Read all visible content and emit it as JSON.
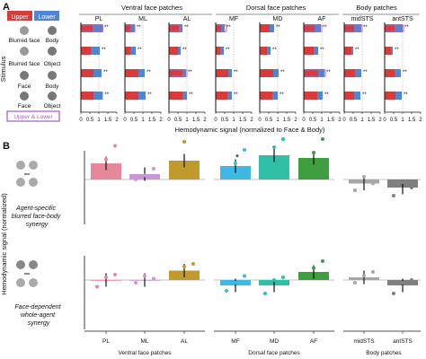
{
  "colors": {
    "upper": "#d93a3a",
    "lower": "#4f86d3",
    "upper_lower": "#b260c9",
    "pink": "#e6879a",
    "lilac": "#c996da",
    "gold": "#c09a2a",
    "cyan": "#3fb8e3",
    "teal": "#2fbfa6",
    "green": "#3f9e3f",
    "gray_light": "#a6a6a6",
    "gray_dark": "#7f7f7f"
  },
  "panel_a": {
    "letter": "A",
    "legend": {
      "upper": "Upper",
      "lower": "Lower",
      "upper_lower": "Upper & Lower"
    },
    "ylabel": "Stimulus",
    "xlabel": "Hemodynamic signal (normalized to Face & Body)",
    "group_titles": [
      "Ventral face patches",
      "Dorsal face patches",
      "Body patches"
    ],
    "region_titles": [
      "PL",
      "ML",
      "AL",
      "MF",
      "MD",
      "AF",
      "midSTS",
      "antSTS"
    ],
    "stimulus_rows": [
      [
        "Blurred face",
        "Body"
      ],
      [
        "Blurred face",
        "Object"
      ],
      [
        "Face",
        "Body"
      ],
      [
        "Face",
        "Object"
      ]
    ],
    "tick_labels": [
      "0",
      "0.5",
      "1",
      "1.5",
      "2"
    ],
    "sig_marker": "**",
    "star_marker": "*"
  },
  "panel_b": {
    "letter": "B",
    "ylabel": "Hemodynamic signal (normalized)",
    "synergy_labels": [
      "Agent-specific blurred face-body synergy",
      "Face-dependent whole-agent synergy"
    ],
    "category_labels": [
      "PL",
      "ML",
      "AL",
      "MF",
      "MD",
      "AF",
      "midSTS",
      "antSTS"
    ],
    "group_labels": [
      "Ventral face patches",
      "Dorsal face patches",
      "Body patches"
    ],
    "star_marker": "*"
  },
  "chart_data": [
    {
      "type": "bar",
      "title": "Ventral face patches / Dorsal face patches / Body patches",
      "xlabel": "Hemodynamic signal (normalized to Face & Body)",
      "ylabel": "Stimulus",
      "xlim": [
        0,
        2
      ],
      "orientation": "horizontal",
      "categories": [
        "Blurred face + Body",
        "Blurred face + Object",
        "Face + Body",
        "Face + Object"
      ],
      "series": [
        {
          "name": "PL",
          "upper": [
            0.65,
            0.55,
            0.7,
            0.72
          ],
          "lower": [
            0.55,
            0.5,
            0.45,
            0.5
          ],
          "upper_lower": [
            1.22,
            0.0,
            0.0,
            0.0
          ]
        },
        {
          "name": "ML",
          "upper": [
            0.3,
            0.3,
            0.75,
            0.75
          ],
          "lower": [
            0.25,
            0.3,
            0.35,
            0.4
          ],
          "upper_lower": [
            0.55,
            0.0,
            0.0,
            0.0
          ]
        },
        {
          "name": "AL",
          "upper": [
            0.55,
            0.5,
            0.75,
            0.75
          ],
          "lower": [
            0.2,
            0.15,
            0.2,
            0.25
          ],
          "upper_lower": [
            0.62,
            0.0,
            1.0,
            0.0
          ]
        },
        {
          "name": "MF",
          "upper": [
            0.3,
            0.25,
            0.7,
            0.65
          ],
          "lower": [
            0.2,
            0.2,
            0.2,
            0.25
          ],
          "upper_lower": [
            0.6,
            0.0,
            0.0,
            0.0
          ]
        },
        {
          "name": "MD",
          "upper": [
            0.55,
            0.4,
            0.75,
            0.7
          ],
          "lower": [
            0.25,
            0.2,
            0.3,
            0.3
          ],
          "upper_lower": [
            0.0,
            0.0,
            0.0,
            0.0
          ]
        },
        {
          "name": "AF",
          "upper": [
            0.6,
            0.55,
            0.8,
            0.75
          ],
          "lower": [
            0.35,
            0.25,
            0.35,
            0.3
          ],
          "upper_lower": [
            1.0,
            0.0,
            1.2,
            0.0
          ]
        },
        {
          "name": "midSTS",
          "upper": [
            0.55,
            0.4,
            0.6,
            0.55
          ],
          "lower": [
            0.4,
            0.1,
            0.35,
            0.35
          ],
          "upper_lower": [
            1.0,
            0.0,
            0.0,
            0.0
          ]
        },
        {
          "name": "antSTS",
          "upper": [
            0.55,
            0.35,
            0.55,
            0.6
          ],
          "lower": [
            0.45,
            0.1,
            0.35,
            0.35
          ],
          "upper_lower": [
            1.05,
            0.0,
            0.0,
            0.0
          ]
        }
      ]
    },
    {
      "type": "bar",
      "title": "Agent-specific blurred face-body synergy",
      "ylabel": "Hemodynamic signal (normalized)",
      "categories": [
        "PL",
        "ML",
        "AL",
        "MF",
        "MD",
        "AF",
        "midSTS",
        "antSTS"
      ],
      "values": [
        0.12,
        0.04,
        0.14,
        0.1,
        0.18,
        0.16,
        -0.03,
        -0.06
      ],
      "points": [
        [
          0.03,
          0.15,
          0.25
        ],
        [
          0.0,
          0.03,
          0.08
        ],
        [
          0.1,
          0.28,
          0.06
        ],
        [
          0.05,
          0.12,
          0.22
        ],
        [
          0.1,
          0.24,
          0.3
        ],
        [
          0.08,
          0.2,
          0.3
        ],
        [
          -0.08,
          0.02,
          -0.03
        ],
        [
          -0.12,
          -0.02,
          -0.06
        ]
      ]
    },
    {
      "type": "bar",
      "title": "Face-dependent whole-agent synergy",
      "ylabel": "Hemodynamic signal (normalized)",
      "categories": [
        "PL",
        "ML",
        "AL",
        "MF",
        "MD",
        "AF",
        "midSTS",
        "antSTS"
      ],
      "values": [
        0.0,
        0.0,
        0.07,
        -0.04,
        -0.04,
        0.06,
        0.02,
        -0.04
      ],
      "points": [
        [
          -0.05,
          0.02,
          0.04
        ],
        [
          -0.02,
          0.03,
          0.01
        ],
        [
          0.04,
          0.1,
          0.12
        ],
        [
          -0.08,
          -0.02,
          0.03
        ],
        [
          -0.1,
          0.0,
          0.02
        ],
        [
          0.04,
          0.09,
          0.14
        ],
        [
          -0.02,
          0.03,
          0.06
        ],
        [
          -0.1,
          -0.02,
          0.0
        ]
      ]
    }
  ]
}
